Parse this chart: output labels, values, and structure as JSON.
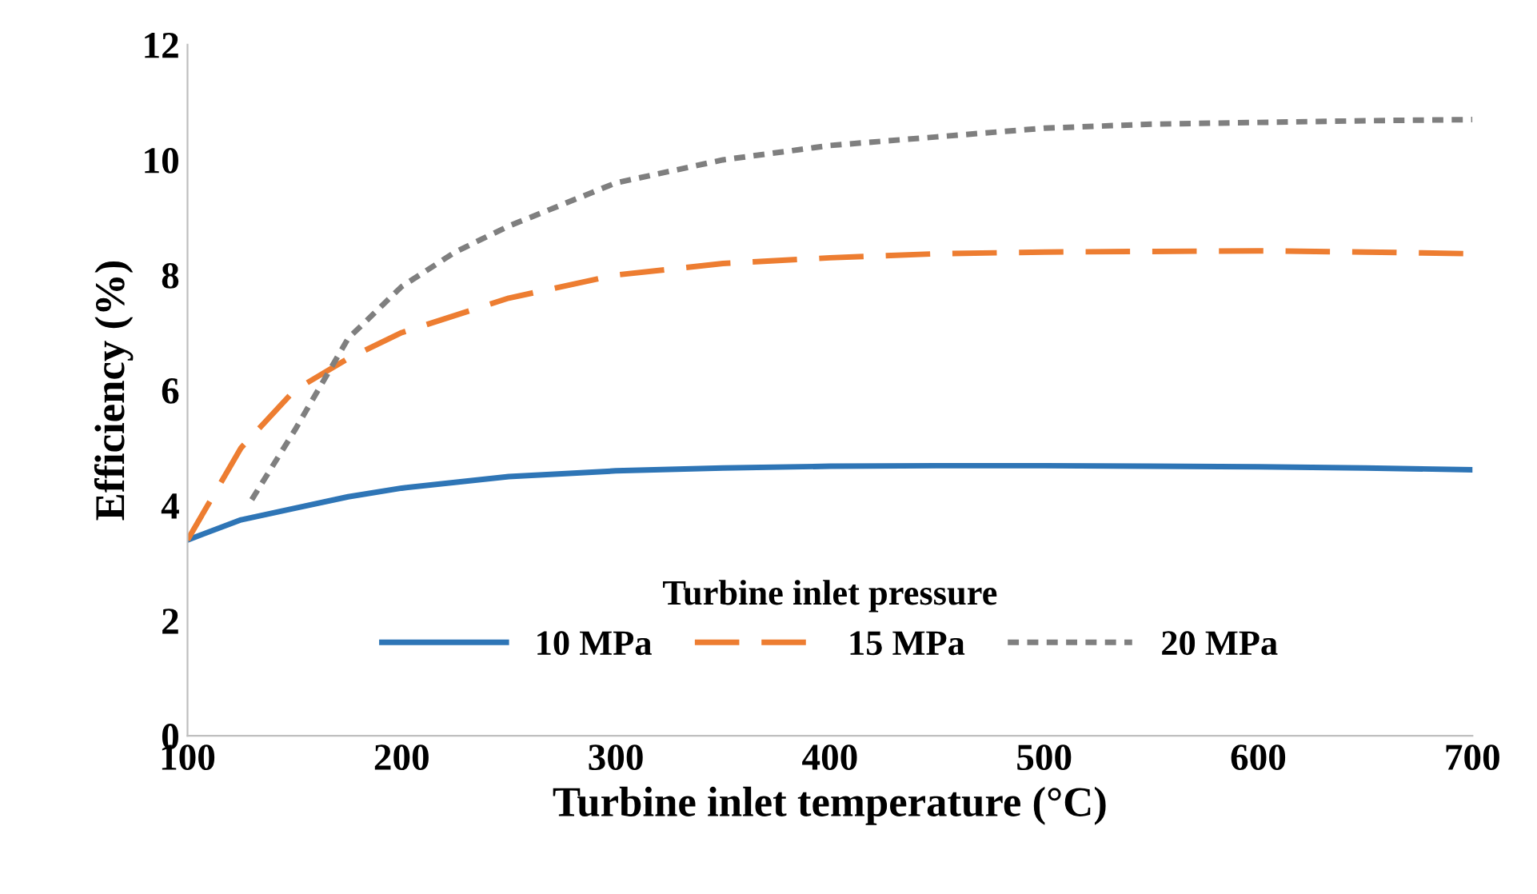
{
  "chart_data": {
    "type": "line",
    "xlabel": "Turbine inlet temperature (°C)",
    "ylabel": "Efficiency (%)",
    "legend_title": "Turbine inlet pressure",
    "xlim": [
      100,
      700
    ],
    "xticks": [
      100,
      200,
      300,
      400,
      500,
      600,
      700
    ],
    "ylim": [
      0,
      12
    ],
    "yticks": [
      0,
      2,
      4,
      6,
      8,
      10,
      12
    ],
    "grid": false,
    "legend": "bottom",
    "marker": "none",
    "series": [
      {
        "name": "10 MPa",
        "color": "#2e75b6",
        "line_style": "solid",
        "x": [
          100,
          125,
          150,
          175,
          200,
          250,
          300,
          350,
          400,
          450,
          500,
          550,
          600,
          650,
          700
        ],
        "values": [
          3.4,
          3.75,
          3.95,
          4.15,
          4.3,
          4.5,
          4.6,
          4.65,
          4.68,
          4.69,
          4.69,
          4.68,
          4.67,
          4.65,
          4.62
        ]
      },
      {
        "name": "15 MPa",
        "color": "#ed7d31",
        "line_style": "dashed",
        "x": [
          100,
          125,
          150,
          175,
          200,
          250,
          300,
          350,
          400,
          450,
          500,
          550,
          600,
          650,
          700
        ],
        "values": [
          3.4,
          5.0,
          6.0,
          6.55,
          7.0,
          7.6,
          8.0,
          8.2,
          8.3,
          8.37,
          8.4,
          8.41,
          8.42,
          8.4,
          8.37
        ]
      },
      {
        "name": "20 MPa",
        "color": "#7f7f7f",
        "line_style": "dotted",
        "x": [
          130,
          150,
          175,
          200,
          225,
          250,
          300,
          350,
          400,
          450,
          500,
          550,
          600,
          650,
          700
        ],
        "values": [
          4.1,
          5.3,
          6.9,
          7.8,
          8.4,
          8.85,
          9.6,
          10.0,
          10.25,
          10.4,
          10.55,
          10.62,
          10.65,
          10.68,
          10.7
        ]
      }
    ]
  }
}
